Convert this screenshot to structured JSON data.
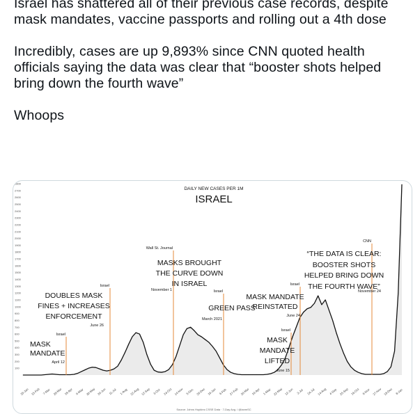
{
  "tweet": {
    "paragraphs": [
      "Israel has shattered all of their previous case records, despite mask mandates, vaccine passports and rolling out a 4th dose",
      "Incredibly, cases are up 9,893% since CNN quoted health officials saying the data was clear that “booster shots helped bring down the fourth wave”",
      "Whoops"
    ]
  },
  "chart_data": {
    "type": "area",
    "title": "ISRAEL",
    "subtitle": "DAILY NEW CASES PER 1M",
    "source": "Source: Johns Hopkins CSSE Data · 7-Day Avg. / @ianmSC",
    "ylim": [
      0,
      2800
    ],
    "y_ticks": [
      "100",
      "200",
      "300",
      "400",
      "500",
      "600",
      "700",
      "800",
      "900",
      "1000",
      "1100",
      "1200",
      "1300",
      "1400",
      "1500",
      "1600",
      "1700",
      "1800",
      "1900",
      "2000",
      "2100",
      "2200",
      "2300",
      "2400",
      "2500",
      "2600",
      "2700",
      "2800"
    ],
    "x_tick_labels": [
      "25-Jan",
      "15-Feb",
      "7-Mar",
      "28-Mar",
      "18-Apr",
      "9-May",
      "30-May",
      "20-Jun",
      "11-Jul",
      "1-Aug",
      "22-Aug",
      "12-Sep",
      "3-Oct",
      "24-Oct",
      "14-Nov",
      "5-Dec",
      "26-Dec",
      "16-Jan",
      "6-Feb",
      "27-Feb",
      "20-Mar",
      "10-Apr",
      "1-May",
      "22-May",
      "12-Jun",
      "3-Jul",
      "24-Jul",
      "14-Aug",
      "4-Sep",
      "25-Sep",
      "16-Oct",
      "6-Nov",
      "27-Nov",
      "18-Dec",
      "8-Jan"
    ],
    "grid": false,
    "series": [
      {
        "name": "",
        "color": "#111111",
        "x": [
          0,
          1,
          2,
          3,
          4,
          5,
          6,
          7,
          8,
          9,
          10,
          11,
          12,
          13,
          14,
          15,
          16,
          17,
          18,
          19,
          20,
          21,
          22,
          23,
          24,
          25,
          26,
          27,
          28,
          29,
          30,
          31,
          32,
          33,
          34,
          35,
          36,
          37,
          38,
          39,
          40,
          41,
          42,
          43,
          44,
          45,
          46,
          47,
          48,
          49,
          50,
          51,
          52,
          53,
          54,
          55,
          56,
          57,
          58,
          59,
          60,
          61,
          62,
          63,
          64,
          65,
          66,
          67,
          68,
          69,
          70,
          71,
          72,
          73,
          74,
          75,
          76,
          77,
          78,
          79,
          80,
          81,
          82,
          83,
          84,
          85,
          86,
          87,
          88,
          89,
          90,
          91,
          92,
          93,
          94,
          95,
          96,
          97,
          98,
          99,
          100,
          101,
          102,
          103,
          104
        ],
        "values": [
          0,
          0,
          0,
          0,
          0,
          0,
          5,
          10,
          15,
          10,
          5,
          5,
          5,
          5,
          10,
          25,
          50,
          75,
          100,
          115,
          110,
          90,
          70,
          60,
          70,
          90,
          130,
          220,
          330,
          450,
          560,
          620,
          600,
          480,
          300,
          160,
          70,
          45,
          40,
          50,
          80,
          150,
          270,
          430,
          590,
          680,
          700,
          650,
          590,
          560,
          520,
          480,
          420,
          350,
          250,
          150,
          80,
          40,
          20,
          10,
          5,
          5,
          5,
          5,
          5,
          5,
          5,
          10,
          20,
          40,
          80,
          150,
          250,
          400,
          560,
          700,
          840,
          920,
          970,
          990,
          1050,
          1160,
          1030,
          1100,
          950,
          800,
          620,
          460,
          320,
          200,
          120,
          70,
          40,
          20,
          10,
          10,
          10,
          10,
          10,
          20,
          50,
          120,
          350,
          1200,
          2790
        ]
      }
    ],
    "annotations": [
      {
        "source": "Israel",
        "text": "MASK MANDATE",
        "date": "April 12"
      },
      {
        "source": "Israel",
        "text": "DOUBLES MASK FINES + INCREASES ENFORCEMENT",
        "date": "June 26"
      },
      {
        "source": "Wall St. Journal",
        "text": "MASKS BROUGHT THE CURVE DOWN IN ISRAEL",
        "date": "November 1"
      },
      {
        "source": "Israel",
        "text": "GREEN PASS",
        "date": "March 2021"
      },
      {
        "source": "Israel",
        "text": "MASK MANDATE REINSTATED",
        "date": "June 24"
      },
      {
        "source": "Israel",
        "text": "MASK MANDATE LIFTED",
        "date": "June 15"
      },
      {
        "source": "CNN",
        "text": "“THE DATA IS CLEAR: BOOSTER SHOTS HELPED BRING DOWN THE FOURTH WAVE”",
        "date": "November 24"
      }
    ]
  }
}
